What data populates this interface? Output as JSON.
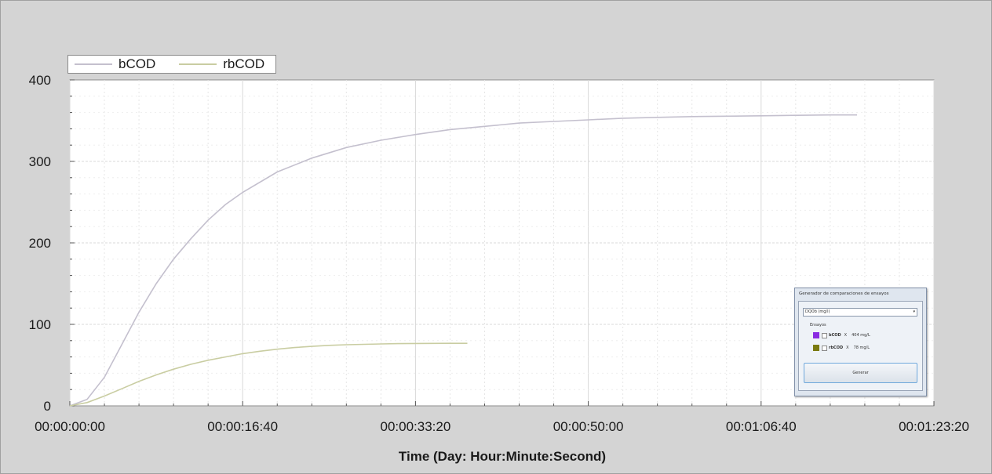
{
  "chart_data": {
    "type": "line",
    "title": "",
    "xlabel": "Time (Day: Hour:Minute:Second)",
    "ylabel": "",
    "xlim": [
      0,
      5000
    ],
    "ylim": [
      0,
      400
    ],
    "x_ticks": [
      0,
      1000,
      2000,
      3000,
      4000,
      5000
    ],
    "x_tick_labels": [
      "00:00:00:00",
      "00:00:16:40",
      "00:00:33:20",
      "00:00:50:00",
      "00:01:06:40",
      "00:01:23:20"
    ],
    "y_ticks": [
      0,
      100,
      200,
      300,
      400
    ],
    "y_tick_labels": [
      "0",
      "100",
      "200",
      "300",
      "400"
    ],
    "grid": true,
    "legend_position": "top-left",
    "series": [
      {
        "name": "bCOD",
        "color": "#c4c0ce",
        "x": [
          0,
          100,
          200,
          300,
          400,
          500,
          600,
          700,
          800,
          900,
          1000,
          1200,
          1400,
          1600,
          1800,
          2000,
          2200,
          2400,
          2600,
          2800,
          3000,
          3200,
          3400,
          3600,
          3800,
          4000,
          4200,
          4400,
          4500,
          4555
        ],
        "y": [
          0,
          8,
          35,
          75,
          115,
          150,
          180,
          205,
          228,
          247,
          262,
          287,
          304,
          317,
          326,
          333,
          339,
          343,
          347,
          349,
          351,
          353,
          354,
          355,
          355.5,
          356,
          356.5,
          357,
          357,
          357
        ]
      },
      {
        "name": "rbCOD",
        "color": "#c9cda2",
        "x": [
          0,
          100,
          200,
          300,
          400,
          500,
          600,
          700,
          800,
          900,
          1000,
          1100,
          1200,
          1300,
          1400,
          1500,
          1600,
          1700,
          1800,
          1900,
          2000,
          2100,
          2200,
          2300
        ],
        "y": [
          0,
          4,
          12,
          21,
          30,
          38,
          45,
          51,
          56,
          60,
          64,
          67,
          69.5,
          71.5,
          73,
          74.2,
          75,
          75.5,
          76,
          76.3,
          76.5,
          76.6,
          76.7,
          76.7
        ]
      }
    ]
  },
  "panel": {
    "title": "Generador de comparaciones de ensayos",
    "select_value": "DQOb (mg/l)",
    "group_label": "Ensayos",
    "rows": [
      {
        "color": "#8a2be2",
        "name": "bCOD",
        "sep": "X",
        "value": "404 mg/L"
      },
      {
        "color": "#7a7a10",
        "name": "rbCOD",
        "sep": "X",
        "value": "78 mg/L"
      }
    ],
    "button_label": "Generar"
  }
}
